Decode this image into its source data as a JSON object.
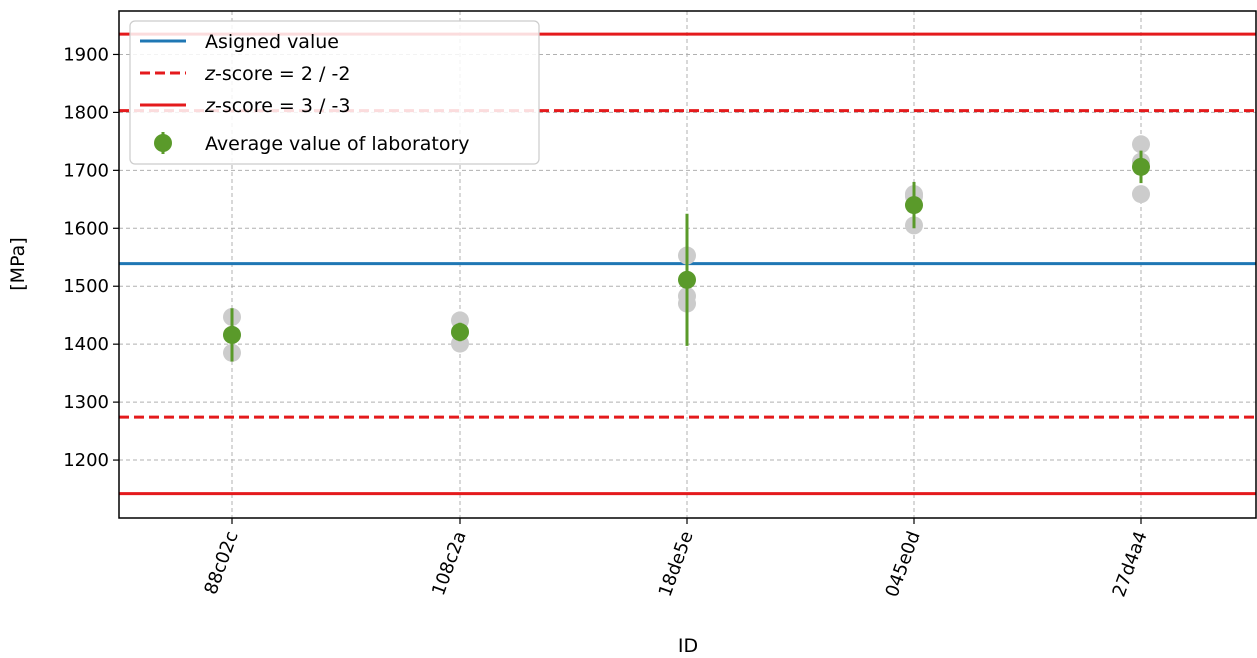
{
  "chart_data": {
    "type": "scatter",
    "xlabel": "ID",
    "ylabel": "[MPa]",
    "categories": [
      "88c02c",
      "108c2a",
      "18de5e",
      "045e0d",
      "27d4a4"
    ],
    "ylim": [
      1100,
      1975
    ],
    "yticks": [
      1200,
      1300,
      1400,
      1500,
      1600,
      1700,
      1800,
      1900
    ],
    "grid": true,
    "legend_position": "top-left",
    "reference_lines": [
      {
        "name": "Asigned value",
        "value": 1539,
        "style": "solid",
        "color": "#1f77b4"
      },
      {
        "name": "z-score = 2 / -2",
        "upper": 1803,
        "lower": 1274,
        "style": "dashed",
        "color": "#e41a1c"
      },
      {
        "name": "z-score = 3 / -3",
        "upper": 1935,
        "lower": 1142,
        "style": "solid",
        "color": "#e41a1c"
      }
    ],
    "series": [
      {
        "name": "Average value of laboratory",
        "color": "#5a9a2a",
        "points": [
          {
            "category": "88c02c",
            "mean": 1416,
            "err_low": 1370,
            "err_high": 1462,
            "replicates": [
              1385,
              1416,
              1447
            ]
          },
          {
            "category": "108c2a",
            "mean": 1421,
            "err_low": 1405,
            "err_high": 1437,
            "replicates": [
              1401,
              1421,
              1441
            ]
          },
          {
            "category": "18de5e",
            "mean": 1511,
            "err_low": 1397,
            "err_high": 1625,
            "replicates": [
              1470,
              1483,
              1553
            ]
          },
          {
            "category": "045e0d",
            "mean": 1640,
            "err_low": 1600,
            "err_high": 1680,
            "replicates": [
              1605,
              1659,
              1655
            ]
          },
          {
            "category": "27d4a4",
            "mean": 1706,
            "err_low": 1678,
            "err_high": 1734,
            "replicates": [
              1659,
              1715,
              1745
            ]
          }
        ]
      }
    ],
    "replicate_color": "#cccccc",
    "legend": [
      {
        "label_prefix": "",
        "label_italic": "",
        "label_suffix": "Asigned value",
        "style": "solid",
        "color": "#1f77b4"
      },
      {
        "label_prefix": "",
        "label_italic": "z",
        "label_suffix": "-score = 2 / -2",
        "style": "dashed",
        "color": "#e41a1c"
      },
      {
        "label_prefix": "",
        "label_italic": "z",
        "label_suffix": "-score = 3 / -3",
        "style": "solid",
        "color": "#e41a1c"
      },
      {
        "label_prefix": "",
        "label_italic": "",
        "label_suffix": "Average value of laboratory",
        "style": "marker",
        "color": "#5a9a2a"
      }
    ]
  }
}
